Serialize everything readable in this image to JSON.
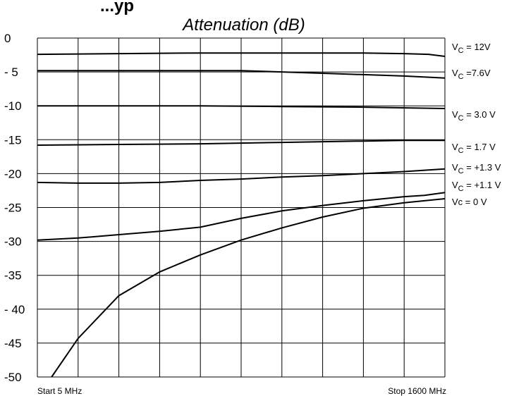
{
  "header": {
    "fragment": "...yp",
    "title": "Attenuation (dB)"
  },
  "chart_data": {
    "type": "line",
    "title": "Attenuation (dB)",
    "x_start_label": "Start 5 MHz",
    "x_stop_label": "Stop 1600 MHz",
    "xlim": [
      0,
      10
    ],
    "ylim": [
      -50,
      0
    ],
    "y_ticks": [
      {
        "value": 0,
        "label": "0"
      },
      {
        "value": -5,
        "label": "- 5"
      },
      {
        "value": -10,
        "label": "-10"
      },
      {
        "value": -15,
        "label": "-15"
      },
      {
        "value": -20,
        "label": "-20"
      },
      {
        "value": -25,
        "label": "-25"
      },
      {
        "value": -30,
        "label": "-30"
      },
      {
        "value": -35,
        "label": "-35"
      },
      {
        "value": -40,
        "label": "- 40"
      },
      {
        "value": -45,
        "label": "-45"
      },
      {
        "value": -50,
        "label": "-50"
      }
    ],
    "grid": true,
    "series": [
      {
        "sub": "C",
        "label": " = 12V",
        "x": [
          0,
          2,
          4,
          6,
          8,
          9,
          9.6,
          10
        ],
        "y": [
          -2.4,
          -2.3,
          -2.2,
          -2.2,
          -2.2,
          -2.3,
          -2.4,
          -2.7
        ]
      },
      {
        "sub": "C",
        "label": " =7.6V",
        "x": [
          0,
          2,
          4,
          5,
          6,
          7,
          8,
          9,
          10
        ],
        "y": [
          -4.8,
          -4.8,
          -4.8,
          -4.8,
          -5.0,
          -5.2,
          -5.4,
          -5.6,
          -5.9
        ]
      },
      {
        "sub": "C",
        "label": " = 3.0 V",
        "x": [
          0,
          2,
          4,
          6,
          8,
          10
        ],
        "y": [
          -10.0,
          -10.0,
          -10.0,
          -10.1,
          -10.2,
          -10.4
        ]
      },
      {
        "sub": "C",
        "label": " = 1.7 V",
        "x": [
          0,
          2,
          4,
          6,
          8,
          9,
          10
        ],
        "y": [
          -15.8,
          -15.7,
          -15.6,
          -15.4,
          -15.2,
          -15.1,
          -15.1
        ]
      },
      {
        "sub": "C",
        "label": " = +1.3 V",
        "x": [
          0,
          1,
          2,
          3,
          4,
          5,
          6,
          7,
          8,
          9,
          10
        ],
        "y": [
          -21.3,
          -21.4,
          -21.4,
          -21.3,
          -21.0,
          -20.8,
          -20.5,
          -20.3,
          -20.0,
          -19.7,
          -19.3
        ]
      },
      {
        "sub": "C",
        "label": " = +1.1 V",
        "x": [
          0,
          1,
          2,
          3,
          4,
          5,
          6,
          7,
          8,
          9,
          9.5,
          10
        ],
        "y": [
          -29.8,
          -29.5,
          -29.0,
          -28.5,
          -27.9,
          -26.6,
          -25.5,
          -24.7,
          -24.0,
          -23.4,
          -23.2,
          -22.8
        ]
      },
      {
        "sub": "",
        "label": "Vc =  0 V",
        "x": [
          0.35,
          1,
          2,
          3,
          4,
          5,
          6,
          7,
          8,
          9,
          10
        ],
        "y": [
          -50.0,
          -44.3,
          -38.0,
          -34.5,
          -32.0,
          -29.8,
          -28.0,
          -26.4,
          -25.1,
          -24.3,
          -23.7
        ]
      }
    ]
  }
}
